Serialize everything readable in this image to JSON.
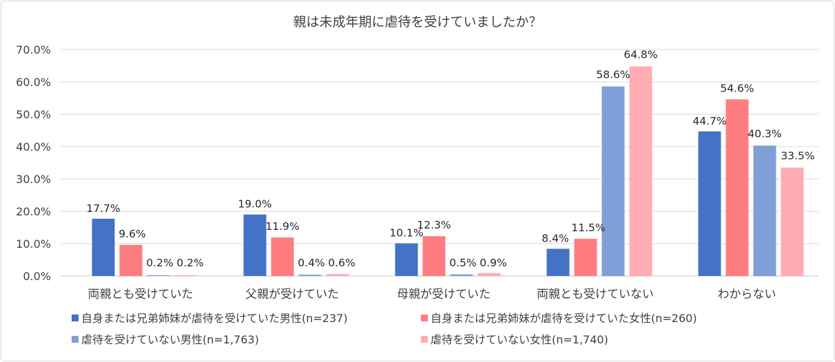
{
  "chart_data": {
    "type": "bar",
    "title": "親は未成年期に虐待を受けていましたか？",
    "xlabel": "",
    "ylabel": "",
    "ylim": [
      0,
      70
    ],
    "yticks": [
      "0.0%",
      "10.0%",
      "20.0%",
      "30.0%",
      "40.0%",
      "50.0%",
      "60.0%",
      "70.0%"
    ],
    "categories": [
      "両親とも受けていた",
      "父親が受けていた",
      "母親が受けていた",
      "両親とも受けていない",
      "わからない"
    ],
    "series": [
      {
        "name": "自身または兄弟姉妹が虐待を受けていた男性(n=237)",
        "color": "#4472c4",
        "values": [
          17.7,
          19.0,
          10.1,
          8.4,
          44.7
        ],
        "labels": [
          "17.7%",
          "19.0%",
          "10.1%",
          "8.4%",
          "44.7%"
        ]
      },
      {
        "name": "自身または兄弟姉妹が虐待を受けていた女性(n=260)",
        "color": "#ff7c80",
        "values": [
          9.6,
          11.9,
          12.3,
          11.5,
          54.6
        ],
        "labels": [
          "9.6%",
          "11.9%",
          "12.3%",
          "11.5%",
          "54.6%"
        ]
      },
      {
        "name": "虐待を受けていない男性(n=1,763)",
        "color": "#7f9fd6",
        "values": [
          0.2,
          0.4,
          0.5,
          58.6,
          40.3
        ],
        "labels": [
          "0.2%",
          "0.4%",
          "0.5%",
          "58.6%",
          "40.3%"
        ]
      },
      {
        "name": "虐待を受けていない女性(n=1,740)",
        "color": "#ffadb3",
        "values": [
          0.2,
          0.6,
          0.9,
          64.8,
          33.5
        ],
        "labels": [
          "0.2%",
          "0.6%",
          "0.9%",
          "64.8%",
          "33.5%"
        ]
      }
    ],
    "grid": true,
    "legend_position": "bottom"
  }
}
